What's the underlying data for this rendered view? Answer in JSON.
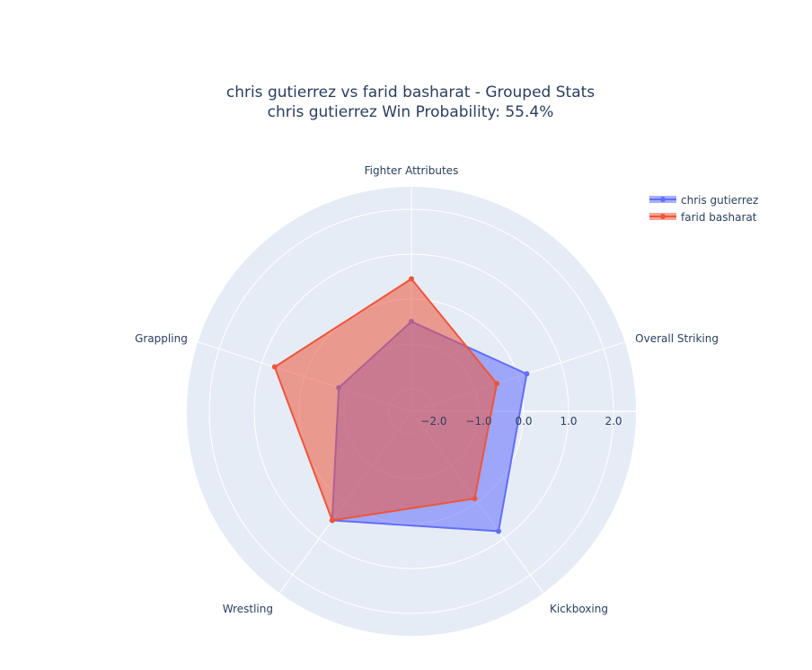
{
  "title": {
    "line1": "chris gutierrez vs farid basharat - Grouped Stats",
    "line2": "chris gutierrez Win Probability: 55.4%"
  },
  "chart_data": {
    "type": "radar",
    "categories": [
      "Fighter Attributes",
      "Overall Striking",
      "Kickboxing",
      "Wrestling",
      "Grappling"
    ],
    "radial_range": [
      -2.5,
      2.5
    ],
    "radial_ticks": [
      -2.0,
      -1.0,
      0.0,
      1.0,
      2.0
    ],
    "radial_tick_labels": [
      "−2.0",
      "−1.0",
      "0.0",
      "1.0",
      "2.0"
    ],
    "grid": true,
    "legend_position": "top-right",
    "series": [
      {
        "name": "chris gutierrez",
        "color": "#636efa",
        "values": [
          -0.5,
          0.2,
          0.8,
          0.5,
          -0.8
        ]
      },
      {
        "name": "farid basharat",
        "color": "#ef553b",
        "values": [
          0.45,
          -0.5,
          -0.1,
          0.5,
          0.7
        ]
      }
    ]
  }
}
